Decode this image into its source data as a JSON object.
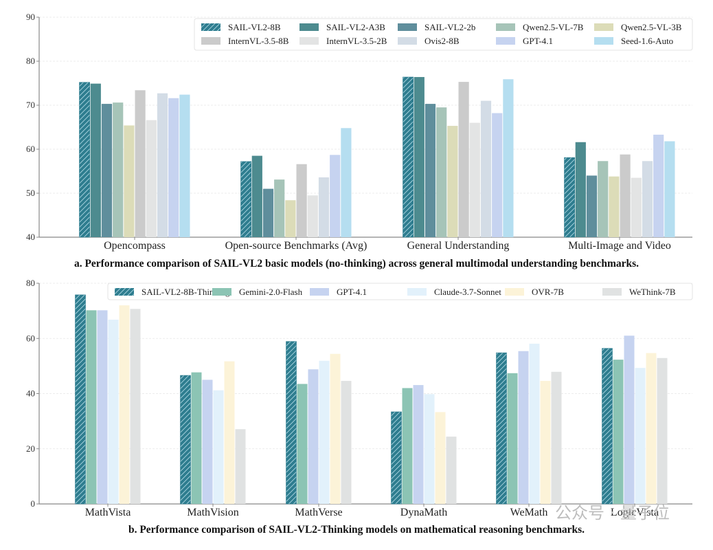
{
  "chart_data": [
    {
      "type": "bar",
      "title": "",
      "caption": "a. Performance comparison of SAIL-VL2 basic models (no-thinking) across general multimodal understanding benchmarks.",
      "xlabel": "",
      "ylabel": "",
      "ylim": [
        40,
        90
      ],
      "yticks": [
        40,
        50,
        60,
        70,
        80,
        90
      ],
      "grid": true,
      "legend_position": "top-right",
      "categories": [
        "Opencompass",
        "Open-source Benchmarks (Avg)",
        "General Understanding",
        "Multi-Image and Video"
      ],
      "series": [
        {
          "name": "SAIL-VL2-8B",
          "color": "#2e7d8f",
          "hatched": true,
          "values": [
            75.2,
            57.2,
            76.4,
            58.1
          ]
        },
        {
          "name": "SAIL-VL2-A3B",
          "color": "#4d8b8f",
          "hatched": false,
          "values": [
            74.9,
            58.5,
            76.4,
            61.6
          ]
        },
        {
          "name": "SAIL-VL2-2b",
          "color": "#5f8e9c",
          "hatched": false,
          "values": [
            70.3,
            51.0,
            70.3,
            54.0
          ]
        },
        {
          "name": "Qwen2.5-VL-7B",
          "color": "#a6c4b8",
          "hatched": false,
          "values": [
            70.6,
            53.1,
            69.5,
            57.3
          ]
        },
        {
          "name": "Qwen2.5-VL-3B",
          "color": "#dcdcb8",
          "hatched": false,
          "values": [
            65.4,
            48.4,
            65.3,
            53.8
          ]
        },
        {
          "name": "InternVL-3.5-8B",
          "color": "#cbcbcb",
          "hatched": false,
          "values": [
            73.4,
            56.6,
            75.3,
            58.8
          ]
        },
        {
          "name": "InternVL-3.5-2B",
          "color": "#e3e4e4",
          "hatched": false,
          "values": [
            66.6,
            49.5,
            66.0,
            53.5
          ]
        },
        {
          "name": "Ovis2-8B",
          "color": "#d3dce6",
          "hatched": false,
          "values": [
            72.7,
            53.6,
            71.0,
            57.3
          ]
        },
        {
          "name": "GPT-4.1",
          "color": "#c6d3f0",
          "hatched": false,
          "values": [
            71.6,
            58.7,
            68.2,
            63.3
          ]
        },
        {
          "name": "Seed-1.6-Auto",
          "color": "#b5def0",
          "hatched": false,
          "values": [
            72.4,
            64.8,
            75.9,
            61.8
          ]
        }
      ]
    },
    {
      "type": "bar",
      "title": "",
      "caption": "b. Performance comparison of SAIL-VL2-Thinking models on mathematical reasoning benchmarks.",
      "xlabel": "",
      "ylabel": "",
      "ylim": [
        0,
        80
      ],
      "yticks": [
        0,
        20,
        40,
        60,
        80
      ],
      "grid": true,
      "legend_position": "top-right",
      "categories": [
        "MathVista",
        "MathVision",
        "MathVerse",
        "DynaMath",
        "WeMath",
        "LogicVista"
      ],
      "series": [
        {
          "name": "SAIL-VL2-8B-Thinking",
          "color": "#2e7d8f",
          "hatched": true,
          "values": [
            75.8,
            46.6,
            58.9,
            33.4,
            54.8,
            56.4
          ]
        },
        {
          "name": "Gemini-2.0-Flash",
          "color": "#8cc4b4",
          "hatched": false,
          "values": [
            70.2,
            47.7,
            43.5,
            42.0,
            47.4,
            52.3
          ]
        },
        {
          "name": "GPT-4.1",
          "color": "#c6d3f0",
          "hatched": false,
          "values": [
            70.2,
            45.0,
            48.8,
            43.1,
            55.4,
            61.0
          ]
        },
        {
          "name": "Claude-3.7-Sonnet",
          "color": "#e2f1fb",
          "hatched": false,
          "values": [
            66.8,
            41.2,
            51.9,
            39.8,
            58.1,
            49.3
          ]
        },
        {
          "name": "OVR-7B",
          "color": "#fcf3d8",
          "hatched": false,
          "values": [
            72.0,
            51.7,
            54.4,
            33.3,
            44.6,
            54.7
          ]
        },
        {
          "name": "WeThink-7B",
          "color": "#e0e2e2",
          "hatched": false,
          "values": [
            70.7,
            27.1,
            44.6,
            24.4,
            47.9,
            52.9
          ]
        }
      ]
    }
  ],
  "watermark": "公众号 · 量子位"
}
